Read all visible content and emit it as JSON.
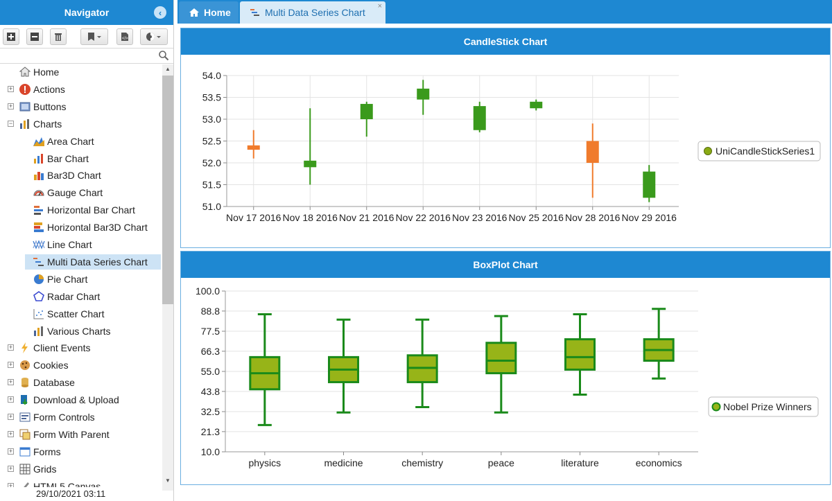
{
  "navigator": {
    "title": "Navigator",
    "toolbar": [
      "plus-square",
      "minus-square",
      "trash",
      "bookmark",
      "code-file",
      "theme"
    ],
    "tree": [
      {
        "label": "Home",
        "icon": "home-icon",
        "level": 0
      },
      {
        "label": "Actions",
        "icon": "alert-icon",
        "level": 0,
        "expand": "+"
      },
      {
        "label": "Buttons",
        "icon": "button-icon",
        "level": 0,
        "expand": "+"
      },
      {
        "label": "Charts",
        "icon": "chart-icon",
        "level": 0,
        "expand": "-"
      },
      {
        "label": "Area Chart",
        "icon": "area-chart-icon",
        "level": 1
      },
      {
        "label": "Bar Chart",
        "icon": "bar-chart-icon",
        "level": 1
      },
      {
        "label": "Bar3D Chart",
        "icon": "bar3d-chart-icon",
        "level": 1
      },
      {
        "label": "Gauge Chart",
        "icon": "gauge-chart-icon",
        "level": 1
      },
      {
        "label": "Horizontal Bar Chart",
        "icon": "hbar-chart-icon",
        "level": 1
      },
      {
        "label": "Horizontal Bar3D Chart",
        "icon": "hbar3d-chart-icon",
        "level": 1
      },
      {
        "label": "Line Chart",
        "icon": "line-chart-icon",
        "level": 1
      },
      {
        "label": "Multi Data Series Chart",
        "icon": "multi-series-chart-icon",
        "level": 1,
        "selected": true
      },
      {
        "label": "Pie Chart",
        "icon": "pie-chart-icon",
        "level": 1
      },
      {
        "label": "Radar Chart",
        "icon": "radar-chart-icon",
        "level": 1
      },
      {
        "label": "Scatter Chart",
        "icon": "scatter-chart-icon",
        "level": 1
      },
      {
        "label": "Various Charts",
        "icon": "various-charts-icon",
        "level": 1
      },
      {
        "label": "Client Events",
        "icon": "lightning-icon",
        "level": 0,
        "expand": "+"
      },
      {
        "label": "Cookies",
        "icon": "cookie-icon",
        "level": 0,
        "expand": "+"
      },
      {
        "label": "Database",
        "icon": "database-icon",
        "level": 0,
        "expand": "+"
      },
      {
        "label": "Download & Upload",
        "icon": "download-icon",
        "level": 0,
        "expand": "+"
      },
      {
        "label": "Form Controls",
        "icon": "form-controls-icon",
        "level": 0,
        "expand": "+"
      },
      {
        "label": "Form With Parent",
        "icon": "form-parent-icon",
        "level": 0,
        "expand": "+"
      },
      {
        "label": "Forms",
        "icon": "forms-icon",
        "level": 0,
        "expand": "+"
      },
      {
        "label": "Grids",
        "icon": "grid-icon",
        "level": 0,
        "expand": "+"
      },
      {
        "label": "HTML5 Canvas",
        "icon": "canvas-icon",
        "level": 0,
        "expand": "+"
      }
    ],
    "status": "29/10/2021 03:11"
  },
  "tabs": [
    {
      "label": "Home",
      "icon": "home-icon"
    },
    {
      "label": "Multi Data Series Chart",
      "icon": "multi-series-chart-icon",
      "close": "×"
    }
  ],
  "chart_data": [
    {
      "type": "candlestick",
      "title": "CandleStick Chart",
      "categories": [
        "Nov 17 2016",
        "Nov 18 2016",
        "Nov 21 2016",
        "Nov 22 2016",
        "Nov 23 2016",
        "Nov 25 2016",
        "Nov 28 2016",
        "Nov 29 2016"
      ],
      "ylim": [
        51.0,
        54.0
      ],
      "yticks": [
        "51.0",
        "51.5",
        "52.0",
        "52.5",
        "53.0",
        "53.5",
        "54.0"
      ],
      "series": [
        {
          "name": "UniCandleStickSeries1",
          "up_color": "#3a9a1c",
          "down_color": "#f07b2c",
          "ohlc": [
            {
              "open": 52.4,
              "high": 52.75,
              "low": 52.1,
              "close": 52.3
            },
            {
              "open": 51.9,
              "high": 53.25,
              "low": 51.5,
              "close": 52.05
            },
            {
              "open": 53.0,
              "high": 53.4,
              "low": 52.6,
              "close": 53.35
            },
            {
              "open": 53.45,
              "high": 53.9,
              "low": 53.1,
              "close": 53.7
            },
            {
              "open": 52.75,
              "high": 53.4,
              "low": 52.7,
              "close": 53.3
            },
            {
              "open": 53.25,
              "high": 53.45,
              "low": 53.2,
              "close": 53.4
            },
            {
              "open": 52.5,
              "high": 52.9,
              "low": 51.2,
              "close": 52.0
            },
            {
              "open": 51.2,
              "high": 51.95,
              "low": 51.1,
              "close": 51.8
            }
          ]
        }
      ],
      "legend": "right"
    },
    {
      "type": "boxplot",
      "title": "BoxPlot Chart",
      "categories": [
        "physics",
        "medicine",
        "chemistry",
        "peace",
        "literature",
        "economics"
      ],
      "ylim": [
        10.0,
        100.0
      ],
      "yticks": [
        "10.0",
        "21.3",
        "32.5",
        "43.8",
        "55.0",
        "66.3",
        "77.5",
        "88.8",
        "100.0"
      ],
      "series": [
        {
          "name": "Nobel Prize Winners",
          "fill": "#97b418",
          "stroke": "#1a8a1a",
          "boxes": [
            {
              "min": 25,
              "q1": 45,
              "median": 54,
              "q3": 63,
              "max": 87
            },
            {
              "min": 32,
              "q1": 49,
              "median": 56,
              "q3": 63,
              "max": 84
            },
            {
              "min": 35,
              "q1": 49,
              "median": 57,
              "q3": 64,
              "max": 84
            },
            {
              "min": 32,
              "q1": 54,
              "median": 61,
              "q3": 71,
              "max": 86
            },
            {
              "min": 42,
              "q1": 56,
              "median": 63,
              "q3": 73,
              "max": 87
            },
            {
              "min": 51,
              "q1": 61,
              "median": 67,
              "q3": 73,
              "max": 90
            }
          ]
        }
      ],
      "legend": "right"
    }
  ]
}
